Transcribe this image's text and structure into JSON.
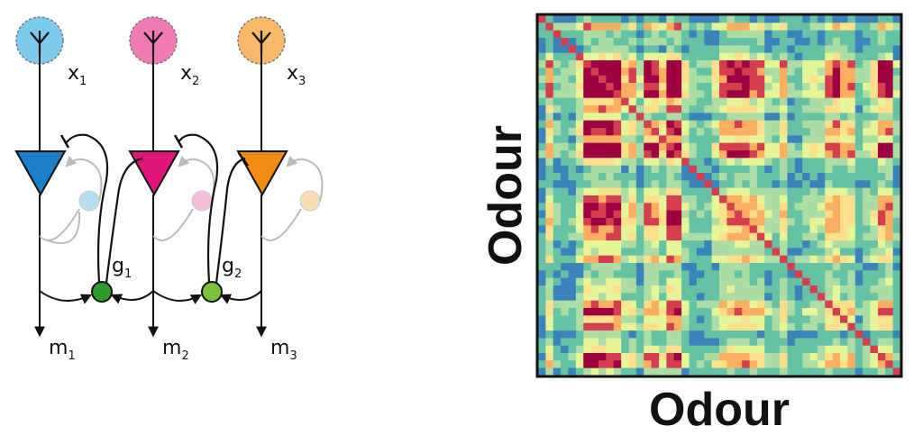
{
  "circuit": {
    "neurons": [
      {
        "input_label": "x",
        "input_sub": "1",
        "output_label": "m",
        "output_sub": "1",
        "receptor_color": "#7ccbee",
        "body_color": "#1c7fc8",
        "ghost_color": "#b8def4"
      },
      {
        "input_label": "x",
        "input_sub": "2",
        "output_label": "m",
        "output_sub": "2",
        "receptor_color": "#f07ab6",
        "body_color": "#e0157a",
        "ghost_color": "#f4bcd8"
      },
      {
        "input_label": "x",
        "input_sub": "3",
        "output_label": "m",
        "output_sub": "3",
        "receptor_color": "#f6b968",
        "body_color": "#f08c14",
        "ghost_color": "#f7dcb4"
      }
    ],
    "interneurons": [
      {
        "label": "g",
        "sub": "1",
        "color": "#2f9a2a"
      },
      {
        "label": "g",
        "sub": "2",
        "color": "#7ac23a"
      }
    ]
  },
  "heatmap": {
    "xlabel": "Odour",
    "ylabel": "Odour",
    "colormap": [
      "#3d5ba9",
      "#3a84bb",
      "#66c2a5",
      "#abdda4",
      "#e6f598",
      "#fee08b",
      "#fdae61",
      "#d53e4f",
      "#9e0142"
    ]
  }
}
